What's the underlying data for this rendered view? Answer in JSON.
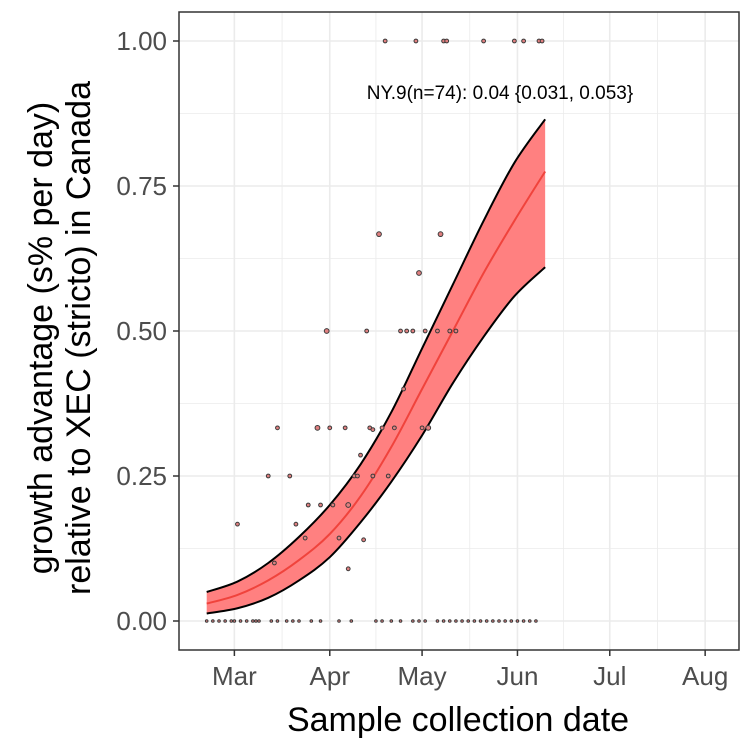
{
  "chart_data": {
    "type": "line",
    "annotation": "NY.9(n=74): 0.04 {0.031, 0.053}",
    "xlabel": "Sample collection date",
    "ylabel_lines": [
      "growth advantage (s% per day)",
      "relative to XEC (stricto) in Canada"
    ],
    "x_ticks": [
      {
        "date": "2025-03-01",
        "label": "Mar"
      },
      {
        "date": "2025-04-01",
        "label": "Apr"
      },
      {
        "date": "2025-05-01",
        "label": "May"
      },
      {
        "date": "2025-06-01",
        "label": "Jun"
      },
      {
        "date": "2025-07-01",
        "label": "Jul"
      },
      {
        "date": "2025-08-01",
        "label": "Aug"
      }
    ],
    "x_range": [
      "2025-02-11",
      "2025-08-12"
    ],
    "y_ticks": [
      {
        "value": 0,
        "label": "0.00"
      },
      {
        "value": 0.25,
        "label": "0.25"
      },
      {
        "value": 0.5,
        "label": "0.50"
      },
      {
        "value": 0.75,
        "label": "0.75"
      },
      {
        "value": 1,
        "label": "1.00"
      }
    ],
    "ylim": [
      -0.05,
      1.05
    ],
    "grid": true,
    "colors": {
      "fit_line": "#f0433c",
      "ribbon_fill": "#ff8080",
      "ribbon_edge": "#000000",
      "point_fill": "#e07f7f",
      "point_edge": "#3b3b3b",
      "gridline": "#ebebeb",
      "panel_border": "#333333"
    },
    "series": [
      {
        "name": "fit",
        "x": [
          "2025-02-20",
          "2025-03-02",
          "2025-03-12",
          "2025-03-22",
          "2025-04-01",
          "2025-04-11",
          "2025-04-21",
          "2025-05-01",
          "2025-05-11",
          "2025-05-21",
          "2025-05-31",
          "2025-06-10"
        ],
        "y": [
          0.03,
          0.045,
          0.07,
          0.105,
          0.15,
          0.215,
          0.3,
          0.4,
          0.5,
          0.6,
          0.69,
          0.775
        ],
        "lower": [
          0.013,
          0.022,
          0.04,
          0.07,
          0.11,
          0.17,
          0.24,
          0.32,
          0.41,
          0.49,
          0.56,
          0.61
        ],
        "upper": [
          0.05,
          0.068,
          0.1,
          0.145,
          0.2,
          0.27,
          0.36,
          0.47,
          0.58,
          0.69,
          0.79,
          0.865
        ]
      }
    ],
    "points": [
      {
        "x": "2025-02-20",
        "y": 0.0,
        "size": 1
      },
      {
        "x": "2025-02-22",
        "y": 0.0,
        "size": 1
      },
      {
        "x": "2025-02-24",
        "y": 0.0,
        "size": 1
      },
      {
        "x": "2025-02-26",
        "y": 0.0,
        "size": 1
      },
      {
        "x": "2025-02-28",
        "y": 0.0,
        "size": 1
      },
      {
        "x": "2025-03-01",
        "y": 0.0,
        "size": 1
      },
      {
        "x": "2025-03-03",
        "y": 0.0,
        "size": 1
      },
      {
        "x": "2025-03-05",
        "y": 0.0,
        "size": 1
      },
      {
        "x": "2025-03-07",
        "y": 0.0,
        "size": 1
      },
      {
        "x": "2025-03-09",
        "y": 0.0,
        "size": 1
      },
      {
        "x": "2025-03-13",
        "y": 0.0,
        "size": 1
      },
      {
        "x": "2025-03-15",
        "y": 0.0,
        "size": 1
      },
      {
        "x": "2025-03-18",
        "y": 0.0,
        "size": 1
      },
      {
        "x": "2025-03-20",
        "y": 0.0,
        "size": 1
      },
      {
        "x": "2025-03-22",
        "y": 0.0,
        "size": 1
      },
      {
        "x": "2025-03-26",
        "y": 0.0,
        "size": 1
      },
      {
        "x": "2025-03-29",
        "y": 0.0,
        "size": 1
      },
      {
        "x": "2025-04-04",
        "y": 0.0,
        "size": 1
      },
      {
        "x": "2025-04-08",
        "y": 0.0,
        "size": 1
      },
      {
        "x": "2025-04-16",
        "y": 0.0,
        "size": 1
      },
      {
        "x": "2025-04-18",
        "y": 0.0,
        "size": 1
      },
      {
        "x": "2025-04-21",
        "y": 0.0,
        "size": 1
      },
      {
        "x": "2025-04-24",
        "y": 0.0,
        "size": 1
      },
      {
        "x": "2025-04-28",
        "y": 0.0,
        "size": 1
      },
      {
        "x": "2025-04-30",
        "y": 0.0,
        "size": 1
      },
      {
        "x": "2025-05-02",
        "y": 0.0,
        "size": 1
      },
      {
        "x": "2025-05-06",
        "y": 0.0,
        "size": 1
      },
      {
        "x": "2025-05-08",
        "y": 0.0,
        "size": 1
      },
      {
        "x": "2025-05-10",
        "y": 0.0,
        "size": 1
      },
      {
        "x": "2025-05-12",
        "y": 0.0,
        "size": 1
      },
      {
        "x": "2025-05-14",
        "y": 0.0,
        "size": 1
      },
      {
        "x": "2025-05-16",
        "y": 0.0,
        "size": 1
      },
      {
        "x": "2025-05-18",
        "y": 0.0,
        "size": 1
      },
      {
        "x": "2025-05-20",
        "y": 0.0,
        "size": 1
      },
      {
        "x": "2025-05-22",
        "y": 0.0,
        "size": 1
      },
      {
        "x": "2025-05-24",
        "y": 0.0,
        "size": 1
      },
      {
        "x": "2025-05-26",
        "y": 0.0,
        "size": 1
      },
      {
        "x": "2025-05-28",
        "y": 0.0,
        "size": 1
      },
      {
        "x": "2025-05-30",
        "y": 0.0,
        "size": 1
      },
      {
        "x": "2025-06-01",
        "y": 0.0,
        "size": 1
      },
      {
        "x": "2025-06-03",
        "y": 0.0,
        "size": 1
      },
      {
        "x": "2025-06-05",
        "y": 0.0,
        "size": 1
      },
      {
        "x": "2025-06-07",
        "y": 0.0,
        "size": 1
      },
      {
        "x": "2025-03-02",
        "y": 0.167,
        "size": 2
      },
      {
        "x": "2025-03-08",
        "y": 0.0,
        "size": 1
      },
      {
        "x": "2025-03-12",
        "y": 0.25,
        "size": 2
      },
      {
        "x": "2025-03-14",
        "y": 0.1,
        "size": 2
      },
      {
        "x": "2025-03-15",
        "y": 0.333,
        "size": 2
      },
      {
        "x": "2025-03-19",
        "y": 0.25,
        "size": 2
      },
      {
        "x": "2025-03-21",
        "y": 0.167,
        "size": 2
      },
      {
        "x": "2025-03-24",
        "y": 0.143,
        "size": 2
      },
      {
        "x": "2025-03-25",
        "y": 0.2,
        "size": 2
      },
      {
        "x": "2025-03-28",
        "y": 0.333,
        "size": 3
      },
      {
        "x": "2025-03-29",
        "y": 0.2,
        "size": 2
      },
      {
        "x": "2025-03-31",
        "y": 0.5,
        "size": 3
      },
      {
        "x": "2025-04-01",
        "y": 0.333,
        "size": 2
      },
      {
        "x": "2025-04-02",
        "y": 0.2,
        "size": 2
      },
      {
        "x": "2025-04-04",
        "y": 0.143,
        "size": 2
      },
      {
        "x": "2025-04-06",
        "y": 0.333,
        "size": 2
      },
      {
        "x": "2025-04-07",
        "y": 0.09,
        "size": 2
      },
      {
        "x": "2025-04-07",
        "y": 0.2,
        "size": 3
      },
      {
        "x": "2025-04-09",
        "y": 0.25,
        "size": 2
      },
      {
        "x": "2025-04-10",
        "y": 0.25,
        "size": 2
      },
      {
        "x": "2025-04-11",
        "y": 0.286,
        "size": 2
      },
      {
        "x": "2025-04-12",
        "y": 0.14,
        "size": 2
      },
      {
        "x": "2025-04-13",
        "y": 0.5,
        "size": 2
      },
      {
        "x": "2025-04-14",
        "y": 0.333,
        "size": 2
      },
      {
        "x": "2025-04-15",
        "y": 0.25,
        "size": 2
      },
      {
        "x": "2025-04-15",
        "y": 0.33,
        "size": 2
      },
      {
        "x": "2025-04-17",
        "y": 0.667,
        "size": 3
      },
      {
        "x": "2025-04-18",
        "y": 0.333,
        "size": 2
      },
      {
        "x": "2025-04-19",
        "y": 1.0,
        "size": 2
      },
      {
        "x": "2025-04-20",
        "y": 0.25,
        "size": 2
      },
      {
        "x": "2025-04-22",
        "y": 0.333,
        "size": 2
      },
      {
        "x": "2025-04-24",
        "y": 0.5,
        "size": 2
      },
      {
        "x": "2025-04-25",
        "y": 0.4,
        "size": 2
      },
      {
        "x": "2025-04-26",
        "y": 0.5,
        "size": 2
      },
      {
        "x": "2025-04-28",
        "y": 0.5,
        "size": 2
      },
      {
        "x": "2025-04-29",
        "y": 1.0,
        "size": 2
      },
      {
        "x": "2025-04-30",
        "y": 0.6,
        "size": 3
      },
      {
        "x": "2025-05-01",
        "y": 0.333,
        "size": 2
      },
      {
        "x": "2025-05-02",
        "y": 0.5,
        "size": 2
      },
      {
        "x": "2025-05-03",
        "y": 0.333,
        "size": 3
      },
      {
        "x": "2025-05-06",
        "y": 0.5,
        "size": 2
      },
      {
        "x": "2025-05-07",
        "y": 0.667,
        "size": 3
      },
      {
        "x": "2025-05-08",
        "y": 1.0,
        "size": 2
      },
      {
        "x": "2025-05-09",
        "y": 1.0,
        "size": 2
      },
      {
        "x": "2025-05-10",
        "y": 0.5,
        "size": 2
      },
      {
        "x": "2025-05-12",
        "y": 0.5,
        "size": 2
      },
      {
        "x": "2025-05-21",
        "y": 1.0,
        "size": 2
      },
      {
        "x": "2025-05-31",
        "y": 1.0,
        "size": 2
      },
      {
        "x": "2025-06-03",
        "y": 1.0,
        "size": 2
      },
      {
        "x": "2025-06-08",
        "y": 1.0,
        "size": 2
      },
      {
        "x": "2025-06-09",
        "y": 1.0,
        "size": 2
      }
    ]
  }
}
